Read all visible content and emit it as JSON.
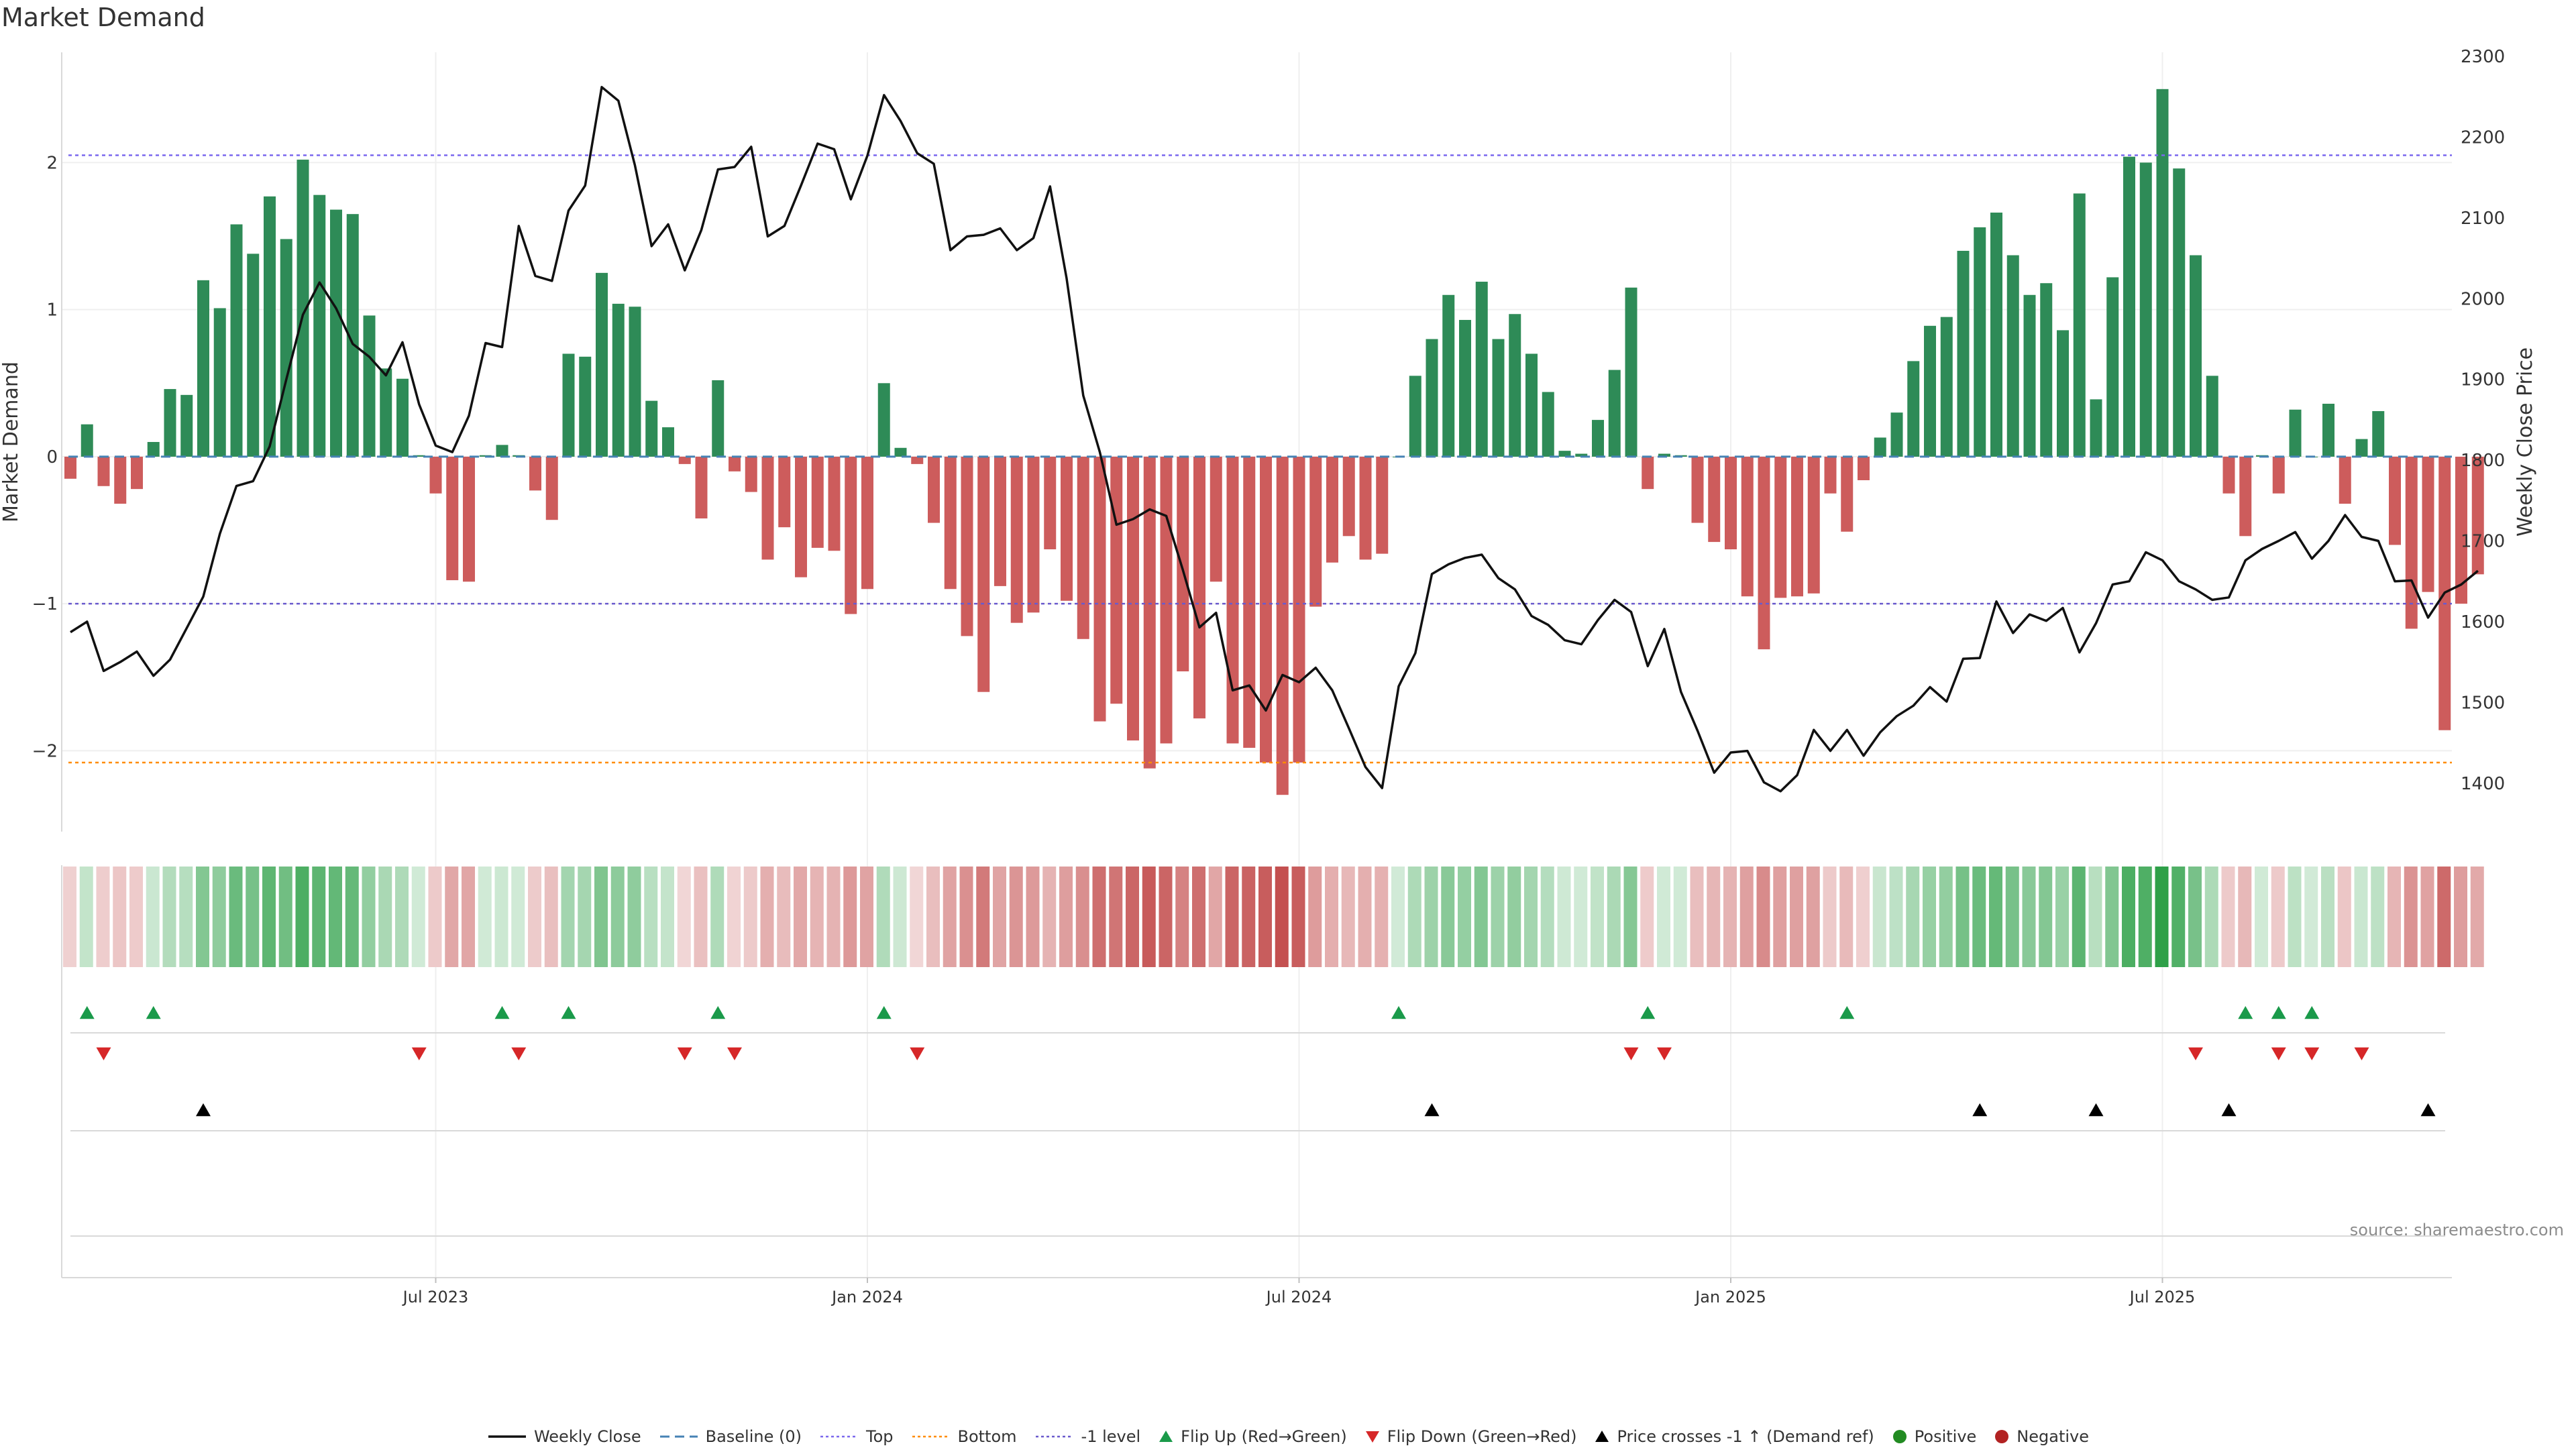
{
  "page": {
    "title": "Market Demand",
    "source": "source: sharemaestro.com"
  },
  "colors": {
    "positive": "#2e8b57",
    "negative": "#cd5c5c",
    "price": "#111111",
    "baseline": "#4682b4",
    "top": "#7b68ee",
    "bottom": "#ff8c00",
    "minus_one": "#6a5acd",
    "flip_up": "#1a9a4a",
    "flip_down": "#d62728",
    "cross": "#000000",
    "dot_positive": "#228b22",
    "dot_negative": "#b22222"
  },
  "legend": [
    {
      "id": "close",
      "label": "Weekly Close",
      "kind": "line",
      "color": "#111111"
    },
    {
      "id": "baseline",
      "label": "Baseline (0)",
      "kind": "dash",
      "color": "#4682b4"
    },
    {
      "id": "top",
      "label": "Top",
      "kind": "dot",
      "color": "#7b68ee"
    },
    {
      "id": "bottom",
      "label": "Bottom",
      "kind": "dot",
      "color": "#ff8c00"
    },
    {
      "id": "minus-one",
      "label": "-1 level",
      "kind": "dot",
      "color": "#6a5acd"
    },
    {
      "id": "flip-up",
      "label": "Flip Up (Red→Green)",
      "kind": "tri-up",
      "color": "#1a9a4a"
    },
    {
      "id": "flip-down",
      "label": "Flip Down (Green→Red)",
      "kind": "tri-down",
      "color": "#d62728"
    },
    {
      "id": "cross",
      "label": "Price crosses -1 ↑ (Demand ref)",
      "kind": "tri-up",
      "color": "#000000"
    },
    {
      "id": "positive",
      "label": "Positive",
      "kind": "circle",
      "color": "#228b22"
    },
    {
      "id": "negative",
      "label": "Negative",
      "kind": "circle",
      "color": "#b22222"
    }
  ],
  "chart_data": {
    "type": "bar",
    "title": "Market Demand",
    "ylabel": "Market Demand",
    "y2label": "Weekly Close Price",
    "ylim": [
      -2.55,
      2.75
    ],
    "y2lim": [
      1340,
      2305
    ],
    "yticks": [
      -2,
      -1,
      0,
      1,
      2
    ],
    "ytick_labels": [
      "−2",
      "−1",
      "0",
      "1",
      "2"
    ],
    "y2ticks": [
      1400,
      1500,
      1600,
      1700,
      1800,
      1900,
      2000,
      2100,
      2200,
      2300
    ],
    "x_start": "2023-01-07",
    "x_step_days": 7,
    "xticks": [
      {
        "label": "Jul 2023",
        "index": 22
      },
      {
        "label": "Jan 2024",
        "index": 48
      },
      {
        "label": "Jul 2024",
        "index": 74
      },
      {
        "label": "Jan 2025",
        "index": 100
      },
      {
        "label": "Jul 2025",
        "index": 126
      }
    ],
    "reference_lines": {
      "top": 2.05,
      "bottom": -2.08,
      "minus_one": -1.0,
      "baseline": 0
    },
    "demand": [
      -0.15,
      0.22,
      -0.2,
      -0.32,
      -0.22,
      0.1,
      0.46,
      0.42,
      1.2,
      1.01,
      1.58,
      1.38,
      1.77,
      1.48,
      2.02,
      1.78,
      1.68,
      1.65,
      0.96,
      0.6,
      0.53,
      0.01,
      -0.25,
      -0.84,
      -0.85,
      0.01,
      0.08,
      0.01,
      -0.23,
      -0.43,
      0.7,
      0.68,
      1.25,
      1.04,
      1.02,
      0.38,
      0.2,
      -0.05,
      -0.42,
      0.52,
      -0.1,
      -0.24,
      -0.7,
      -0.48,
      -0.82,
      -0.62,
      -0.64,
      -1.07,
      -0.9,
      0.5,
      0.06,
      -0.05,
      -0.45,
      -0.9,
      -1.22,
      -1.6,
      -0.88,
      -1.13,
      -1.06,
      -0.63,
      -0.98,
      -1.24,
      -1.8,
      -1.68,
      -1.93,
      -2.12,
      -1.95,
      -1.46,
      -1.78,
      -0.85,
      -1.95,
      -1.98,
      -2.08,
      -2.3,
      -2.08,
      -1.02,
      -0.72,
      -0.54,
      -0.7,
      -0.66,
      0.0,
      0.55,
      0.8,
      1.1,
      0.93,
      1.19,
      0.8,
      0.97,
      0.7,
      0.44,
      0.04,
      0.02,
      0.25,
      0.59,
      1.15,
      -0.22,
      0.02,
      0.01,
      -0.45,
      -0.58,
      -0.63,
      -0.95,
      -1.31,
      -0.96,
      -0.95,
      -0.93,
      -0.25,
      -0.51,
      -0.16,
      0.13,
      0.3,
      0.65,
      0.89,
      0.95,
      1.4,
      1.56,
      1.66,
      1.37,
      1.1,
      1.18,
      0.86,
      1.79,
      0.39,
      1.22,
      2.04,
      2.0,
      2.5,
      1.96,
      1.37,
      0.55,
      -0.25,
      -0.54,
      0.01,
      -0.25,
      0.32,
      0.0,
      0.36,
      -0.32,
      0.12,
      0.31,
      -0.6,
      -1.17,
      -0.92,
      -1.86,
      -1.0,
      -0.8
    ],
    "close": [
      1587,
      1600,
      1539,
      1550,
      1563,
      1533,
      1553,
      1592,
      1631,
      1709,
      1768,
      1774,
      1817,
      1900,
      1980,
      2020,
      1988,
      1944,
      1928,
      1905,
      1946,
      1869,
      1818,
      1810,
      1855,
      1945,
      1940,
      2090,
      2028,
      2022,
      2109,
      2140,
      2262,
      2245,
      2165,
      2065,
      2092,
      2035,
      2085,
      2160,
      2163,
      2188,
      2077,
      2090,
      2140,
      2192,
      2185,
      2123,
      2177,
      2252,
      2220,
      2180,
      2167,
      2060,
      2077,
      2079,
      2087,
      2060,
      2075,
      2139,
      2025,
      1880,
      1810,
      1720,
      1727,
      1739,
      1731,
      1664,
      1593,
      1611,
      1515,
      1521,
      1490,
      1534,
      1525,
      1543,
      1515,
      1468,
      1420,
      1394,
      1520,
      1561,
      1659,
      1671,
      1679,
      1683,
      1654,
      1640,
      1607,
      1596,
      1577,
      1572,
      1602,
      1627,
      1612,
      1545,
      1591,
      1513,
      1465,
      1413,
      1438,
      1440,
      1401,
      1390,
      1410,
      1466,
      1440,
      1466,
      1434,
      1463,
      1483,
      1496,
      1519,
      1501,
      1554,
      1555,
      1625,
      1586,
      1609,
      1601,
      1617,
      1562,
      1598,
      1646,
      1650,
      1686,
      1676,
      1650,
      1640,
      1627,
      1630,
      1676,
      1690,
      1700,
      1711,
      1678,
      1700,
      1732,
      1705,
      1700,
      1650,
      1651,
      1605,
      1636,
      1646,
      1663
    ]
  },
  "heat_strip": {
    "min": -2.3,
    "max": 2.5
  },
  "signals": {
    "flip_up": [
      1,
      5,
      26,
      30,
      39,
      49,
      80,
      95,
      107,
      131,
      133,
      135
    ],
    "flip_down": [
      2,
      21,
      27,
      37,
      40,
      51,
      94,
      96,
      128,
      133,
      135,
      138
    ],
    "price_cross": [
      8,
      82,
      115,
      122,
      130,
      142
    ]
  }
}
